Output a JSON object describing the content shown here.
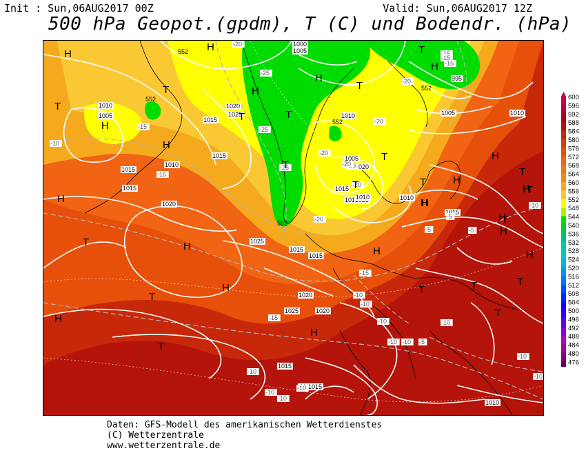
{
  "header": {
    "init": "Init : Sun,06AUG2017 00Z",
    "valid": "Valid: Sun,06AUG2017 12Z",
    "title": "500 hPa Geopot.(gpdm), T (C) und Bodendr. (hPa)"
  },
  "footer": {
    "line1": "Daten: GFS-Modell des amerikanischen Wetterdienstes",
    "line2": "(C) Wetterzentrale",
    "line3": "www.wetterzentrale.de"
  },
  "scale": {
    "levels": [
      "600",
      "596",
      "592",
      "588",
      "584",
      "580",
      "576",
      "572",
      "568",
      "564",
      "560",
      "556",
      "552",
      "548",
      "544",
      "540",
      "536",
      "532",
      "528",
      "524",
      "520",
      "516",
      "512",
      "508",
      "504",
      "500",
      "496",
      "492",
      "488",
      "484",
      "480",
      "476"
    ],
    "colors": [
      "#c8004b",
      "#b4003c",
      "#a00a14",
      "#b4140a",
      "#c8280a",
      "#dc3c0a",
      "#e6500a",
      "#f06414",
      "#f07814",
      "#f08c14",
      "#f5aa1e",
      "#fac832",
      "#ffff00",
      "#b4f000",
      "#00dc00",
      "#00c846",
      "#00be82",
      "#00c8aa",
      "#00c8c8",
      "#00b4dc",
      "#0096f0",
      "#0078ff",
      "#0050ff",
      "#0028ff",
      "#1400ff",
      "#3c00f0",
      "#6400e6",
      "#8c00dc",
      "#b400c8",
      "#a00096",
      "#820078",
      "#640064"
    ]
  },
  "map": {
    "colors": {
      "sea_red_dark": "#a01414",
      "red": "#c8280a",
      "red_orange": "#dc3c0a",
      "orange": "#f06414",
      "orange_light": "#f5961e",
      "yellow_orange": "#fac832",
      "yellow": "#ffff00",
      "green": "#00dc00",
      "isobar": "#ffffff",
      "isotherm": "#aaaaaa"
    },
    "pressure_labels": [
      {
        "text": "1000"
      },
      {
        "text": "1005"
      },
      {
        "text": "1010"
      },
      {
        "text": "1015"
      },
      {
        "text": "1015"
      },
      {
        "text": "1020"
      },
      {
        "text": "1025"
      },
      {
        "text": "1010"
      },
      {
        "text": "1005"
      },
      {
        "text": "995"
      },
      {
        "text": "1005"
      },
      {
        "text": "1010"
      },
      {
        "text": "1005"
      },
      {
        "text": "1010"
      },
      {
        "text": "1015"
      },
      {
        "text": "1020"
      },
      {
        "text": "1025"
      },
      {
        "text": "1015"
      },
      {
        "text": "1010"
      },
      {
        "text": "1015"
      },
      {
        "text": "1020"
      },
      {
        "text": "1025"
      },
      {
        "text": "1015"
      },
      {
        "text": "1010"
      },
      {
        "text": "1010"
      },
      {
        "text": "1015"
      },
      {
        "text": "1020"
      },
      {
        "text": "1025"
      },
      {
        "text": "1020"
      },
      {
        "text": "1015"
      },
      {
        "text": "1010"
      },
      {
        "text": "1015"
      },
      {
        "text": "1010"
      },
      {
        "text": "1005"
      },
      {
        "text": "1010"
      },
      {
        "text": "1015"
      },
      {
        "text": "1010"
      },
      {
        "text": "1015"
      }
    ],
    "temperature_labels": [
      "-20",
      "-25",
      "-25",
      "-20",
      "-15",
      "-15",
      "-15",
      "-25",
      "-15",
      "-10",
      "-15",
      "-20",
      "-20",
      "-20",
      "-20",
      "-20",
      "-20",
      "-15",
      "-10",
      "-10",
      "-15",
      "-10",
      "-10",
      "-10",
      "-10",
      "-10",
      "-10",
      "-10",
      "-10",
      "-10",
      "-5",
      "-5",
      "-5",
      "-5",
      "-10",
      "-10"
    ],
    "geopot_labels": [
      "552",
      "552",
      "552",
      "552",
      "552"
    ],
    "pressure_centers": [
      {
        "type": "H"
      },
      {
        "type": "H"
      },
      {
        "type": "T"
      },
      {
        "type": "H"
      },
      {
        "type": "T"
      },
      {
        "type": "T"
      },
      {
        "type": "H"
      },
      {
        "type": "T"
      },
      {
        "type": "H"
      },
      {
        "type": "H"
      },
      {
        "type": "T"
      },
      {
        "type": "T"
      },
      {
        "type": "T"
      },
      {
        "type": "T"
      },
      {
        "type": "H"
      },
      {
        "type": "T"
      },
      {
        "type": "T"
      },
      {
        "type": "H"
      },
      {
        "type": "H"
      },
      {
        "type": "T"
      },
      {
        "type": "T"
      },
      {
        "type": "H"
      },
      {
        "type": "T"
      },
      {
        "type": "H"
      },
      {
        "type": "T"
      },
      {
        "type": "H"
      },
      {
        "type": "H"
      },
      {
        "type": "T"
      },
      {
        "type": "H"
      },
      {
        "type": "T"
      },
      {
        "type": "T"
      },
      {
        "type": "H"
      },
      {
        "type": "H"
      },
      {
        "type": "T"
      },
      {
        "type": "H"
      },
      {
        "type": "T"
      },
      {
        "type": "H"
      },
      {
        "type": "H"
      },
      {
        "type": "T"
      },
      {
        "type": "H"
      },
      {
        "type": "H"
      }
    ]
  }
}
